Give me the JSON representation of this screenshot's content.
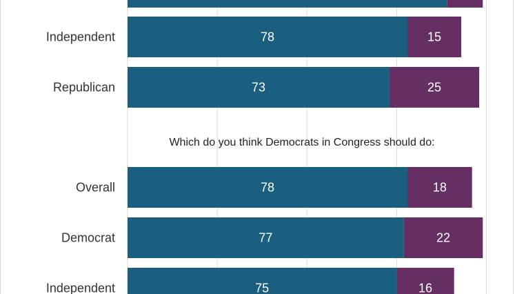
{
  "colors": {
    "series_1": "#1a5f7f",
    "series_2": "#662f63",
    "grid": "#dddddd",
    "text": "#333333"
  },
  "chart_data": {
    "type": "bar",
    "orientation": "horizontal",
    "stacked": true,
    "grid": true,
    "xlim": [
      0,
      100
    ],
    "sections": [
      {
        "title": "",
        "rows": [
          {
            "category": "",
            "values": [
              89,
              10
            ],
            "partial": "top",
            "labels_visible": false
          },
          {
            "category": "Independent",
            "values": [
              78,
              15
            ]
          },
          {
            "category": "Republican",
            "values": [
              73,
              25
            ]
          }
        ]
      },
      {
        "title": "Which do you think Democrats in Congress should do:",
        "rows": [
          {
            "category": "Overall",
            "values": [
              78,
              18
            ]
          },
          {
            "category": "Democrat",
            "values": [
              77,
              22
            ]
          },
          {
            "category": "Independent",
            "values": [
              75,
              16
            ],
            "partial": "bottom"
          }
        ]
      }
    ]
  }
}
